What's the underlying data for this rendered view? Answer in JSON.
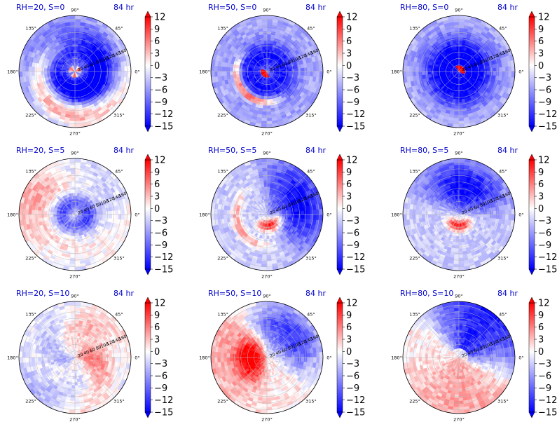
{
  "chart_data": {
    "type": "polar-heatmap",
    "colormap": "bwr",
    "colorbar": {
      "min": -15,
      "max": 12,
      "ticks": [
        12,
        9,
        6,
        3,
        0,
        -3,
        -6,
        -9,
        -12,
        -15
      ],
      "tick_labels": [
        "12",
        "9",
        "6",
        "3",
        "0",
        "−3",
        "−6",
        "−9",
        "−12",
        "−15"
      ],
      "colors": {
        "high": "#ff0000",
        "mid": "#ffffff",
        "low": "#0000ff"
      }
    },
    "angle_labels": [
      "90°",
      "45°",
      "0°",
      "315°",
      "270°",
      "225°",
      "180°",
      "135°"
    ],
    "angle_degrees": [
      90,
      45,
      0,
      315,
      270,
      225,
      180,
      135
    ],
    "radial_labels": [
      "20",
      "40",
      "60",
      "80",
      "100",
      "120",
      "140",
      "160"
    ],
    "panels": [
      {
        "title_left": "RH=20, S=0",
        "title_right": "84 hr",
        "pattern": "spiral-negative"
      },
      {
        "title_left": "RH=50, S=0",
        "title_right": "84 hr",
        "pattern": "ring-negative"
      },
      {
        "title_left": "RH=80, S=0",
        "title_right": "84 hr",
        "pattern": "core-negative"
      },
      {
        "title_left": "RH=20, S=5",
        "title_right": "84 hr",
        "pattern": "mixed-weak"
      },
      {
        "title_left": "RH=50, S=5",
        "title_right": "84 hr",
        "pattern": "east-negative"
      },
      {
        "title_left": "RH=80, S=5",
        "title_right": "84 hr",
        "pattern": "north-negative"
      },
      {
        "title_left": "RH=20, S=10",
        "title_right": "84 hr",
        "pattern": "weak-positive"
      },
      {
        "title_left": "RH=50, S=10",
        "title_right": "84 hr",
        "pattern": "west-positive"
      },
      {
        "title_left": "RH=80, S=10",
        "title_right": "84 hr",
        "pattern": "northeast-negative"
      }
    ]
  }
}
